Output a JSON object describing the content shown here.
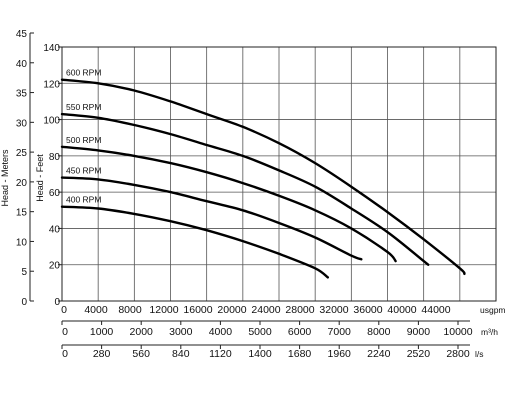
{
  "chart_data": {
    "type": "line",
    "title": "",
    "ylabel_outer": "Head - Meters",
    "ylabel_inner": "Head - Feet",
    "y_meters_ticks": [
      "0",
      "5",
      "10",
      "15",
      "20",
      "25",
      "30",
      "35",
      "40",
      "45"
    ],
    "y_feet_ticks": [
      "0",
      "20",
      "40",
      "60",
      "80",
      "100",
      "120",
      "140"
    ],
    "ylim_feet": [
      0,
      140
    ],
    "xlim_usgpm": [
      0,
      48000
    ],
    "x_axes": [
      {
        "unit": "usgpm",
        "ticks": [
          "0",
          "4000",
          "8000",
          "12000",
          "16000",
          "20000",
          "24000",
          "28000",
          "32000",
          "36000",
          "40000",
          "44000"
        ]
      },
      {
        "unit": "m³/h",
        "ticks": [
          "0",
          "1000",
          "2000",
          "3000",
          "4000",
          "5000",
          "6000",
          "7000",
          "8000",
          "9000",
          "10000"
        ]
      },
      {
        "unit": "l/s",
        "ticks": [
          "0",
          "280",
          "560",
          "840",
          "1120",
          "1400",
          "1680",
          "1960",
          "2240",
          "2520",
          "2800"
        ]
      }
    ],
    "grid": true,
    "series": [
      {
        "name": "600 RPM",
        "x": [
          0,
          4000,
          8000,
          12000,
          16000,
          20000,
          24000,
          28000,
          32000,
          36000,
          40000,
          44000,
          44500
        ],
        "y": [
          122,
          120,
          116,
          110,
          103,
          96,
          87,
          76,
          63,
          49,
          34,
          18,
          15
        ]
      },
      {
        "name": "550 RPM",
        "x": [
          0,
          4000,
          8000,
          12000,
          16000,
          20000,
          24000,
          28000,
          32000,
          36000,
          40000,
          40500
        ],
        "y": [
          103,
          101,
          97,
          92,
          86,
          80,
          72,
          63,
          51,
          38,
          22,
          20
        ]
      },
      {
        "name": "500 RPM",
        "x": [
          0,
          4000,
          8000,
          12000,
          16000,
          20000,
          24000,
          28000,
          32000,
          36000,
          36900
        ],
        "y": [
          85,
          83,
          80,
          76,
          71,
          65,
          58,
          50,
          40,
          27,
          22
        ]
      },
      {
        "name": "450 RPM",
        "x": [
          0,
          4000,
          8000,
          12000,
          16000,
          20000,
          24000,
          28000,
          32000,
          33100
        ],
        "y": [
          68,
          67,
          64,
          60,
          55,
          50,
          43,
          35,
          25,
          23
        ]
      },
      {
        "name": "400 RPM",
        "x": [
          0,
          4000,
          8000,
          12000,
          16000,
          20000,
          24000,
          28000,
          29400
        ],
        "y": [
          52,
          51,
          48,
          44,
          39,
          33,
          26,
          18,
          13
        ]
      }
    ]
  }
}
